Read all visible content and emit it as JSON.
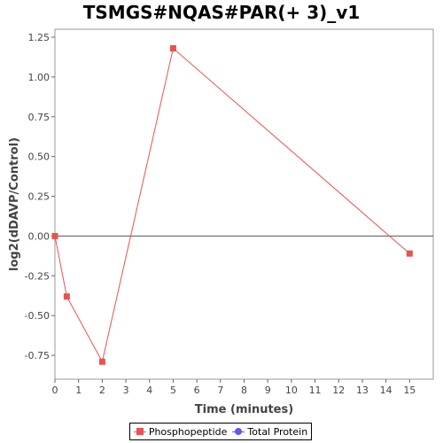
{
  "chart_data": {
    "type": "line",
    "title": "TSMGS#NQAS#PAR(+ 3)_v1",
    "xlabel": "Time (minutes)",
    "ylabel": "log2(dDAVP/Control)",
    "xlim": [
      0,
      16
    ],
    "ylim": [
      -0.9,
      1.3
    ],
    "x_ticks": [
      0,
      1,
      2,
      3,
      4,
      5,
      6,
      7,
      8,
      9,
      10,
      11,
      12,
      13,
      14,
      15
    ],
    "y_ticks": [
      -0.75,
      -0.5,
      -0.25,
      0.0,
      0.25,
      0.5,
      0.75,
      1.0,
      1.25
    ],
    "y_tick_labels": [
      "-0.75",
      "-0.50",
      "-0.25",
      "0.00",
      "0.25",
      "0.50",
      "0.75",
      "1.00",
      "1.25"
    ],
    "zero_line": true,
    "grid": false,
    "legend_position": "bottom",
    "series": [
      {
        "name": "Phosphopeptide",
        "color": "#e8524f",
        "marker": "square",
        "x": [
          0,
          0.5,
          2,
          5,
          15
        ],
        "y": [
          0.0,
          -0.38,
          -0.79,
          1.18,
          -0.11
        ]
      },
      {
        "name": "Total Protein",
        "color": "#5b5bf0",
        "marker": "circle",
        "x": [],
        "y": []
      }
    ]
  }
}
